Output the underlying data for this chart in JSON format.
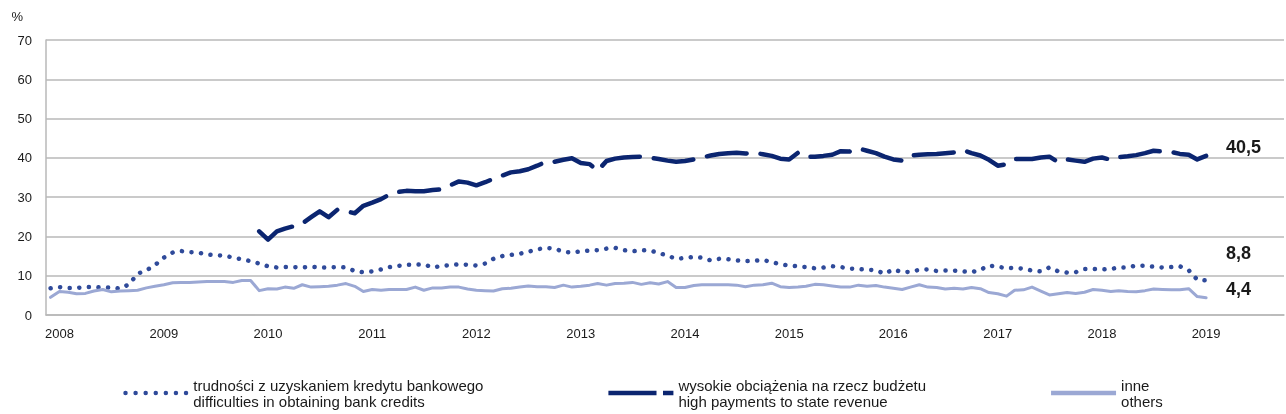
{
  "chart_data": {
    "type": "line",
    "ylabel": "%",
    "x": [
      "2007-12",
      "2008-01",
      "2008-02",
      "2008-03",
      "2008-04",
      "2008-05",
      "2008-06",
      "2008-07",
      "2008-08",
      "2008-09",
      "2008-10",
      "2008-11",
      "2008-12",
      "2009-01",
      "2009-02",
      "2009-03",
      "2009-04",
      "2009-05",
      "2009-06",
      "2009-07",
      "2009-08",
      "2009-09",
      "2009-10",
      "2009-11",
      "2009-12",
      "2010-01",
      "2010-02",
      "2010-03",
      "2010-04",
      "2010-05",
      "2010-06",
      "2010-07",
      "2010-08",
      "2010-09",
      "2010-10",
      "2010-11",
      "2010-12",
      "2011-01",
      "2011-02",
      "2011-03",
      "2011-04",
      "2011-05",
      "2011-06",
      "2011-07",
      "2011-08",
      "2011-09",
      "2011-10",
      "2011-11",
      "2011-12",
      "2012-01",
      "2012-02",
      "2012-03",
      "2012-04",
      "2012-05",
      "2012-06",
      "2012-07",
      "2012-08",
      "2012-09",
      "2012-10",
      "2012-11",
      "2012-12",
      "2013-01",
      "2013-02",
      "2013-03",
      "2013-04",
      "2013-05",
      "2013-06",
      "2013-07",
      "2013-08",
      "2013-09",
      "2013-10",
      "2013-11",
      "2013-12",
      "2014-01",
      "2014-02",
      "2014-03",
      "2014-04",
      "2014-05",
      "2014-06",
      "2014-07",
      "2014-08",
      "2014-09",
      "2014-10",
      "2014-11",
      "2014-12",
      "2015-01",
      "2015-02",
      "2015-03",
      "2015-04",
      "2015-05",
      "2015-06",
      "2015-07",
      "2015-08",
      "2015-09",
      "2015-10",
      "2015-11",
      "2015-12",
      "2016-01",
      "2016-02",
      "2016-03",
      "2016-04",
      "2016-05",
      "2016-06",
      "2016-07",
      "2016-08",
      "2016-09",
      "2016-10",
      "2016-11",
      "2016-12",
      "2017-01",
      "2017-02",
      "2017-03",
      "2017-04",
      "2017-05",
      "2017-06",
      "2017-07",
      "2017-08",
      "2017-09",
      "2017-10",
      "2017-11",
      "2017-12",
      "2018-01",
      "2018-02",
      "2018-03",
      "2018-04",
      "2018-05",
      "2018-06",
      "2018-07",
      "2018-08",
      "2018-09",
      "2018-10",
      "2018-11",
      "2018-12",
      "2019-01"
    ],
    "xlim": [
      "2007-11-15",
      "2019-10-01"
    ],
    "xticks": [
      "2008",
      "2009",
      "2010",
      "2011",
      "2012",
      "2013",
      "2014",
      "2015",
      "2016",
      "2017",
      "2018",
      "2019"
    ],
    "ylim": [
      0,
      70
    ],
    "yticks": [
      0,
      10,
      20,
      30,
      40,
      50,
      60,
      70
    ],
    "grid": "y",
    "legend": "bottom",
    "marker": "none",
    "series": [
      {
        "name": "trudności z uzyskaniem kredytu bankowego\ndifficulties in obtaining bank credits",
        "color": "#2f4a9a",
        "line_style": "dotted",
        "values": [
          6.8,
          7.1,
          6.9,
          6.9,
          7.1,
          7.1,
          7.0,
          7.0,
          6.7,
          7.8,
          10.5,
          11.4,
          12.7,
          14.6,
          15.9,
          16.3,
          16.0,
          15.9,
          15.4,
          15.2,
          15.1,
          14.6,
          14.2,
          13.7,
          13.1,
          12.4,
          12.1,
          12.2,
          12.2,
          12.1,
          12.3,
          12.1,
          12.1,
          12.2,
          12.1,
          11.2,
          10.9,
          11.1,
          11.6,
          12.2,
          12.5,
          12.8,
          12.8,
          12.9,
          12.1,
          12.5,
          12.7,
          12.9,
          12.8,
          12.6,
          13.1,
          14.3,
          15.0,
          15.3,
          15.6,
          16.1,
          16.7,
          17.1,
          16.9,
          16.1,
          15.9,
          16.2,
          16.4,
          16.5,
          16.9,
          17.1,
          16.5,
          16.2,
          16.5,
          16.4,
          15.8,
          15.1,
          14.3,
          14.5,
          14.8,
          14.6,
          13.9,
          14.3,
          14.2,
          13.9,
          13.7,
          13.8,
          14.0,
          13.5,
          12.9,
          12.6,
          12.4,
          12.2,
          11.9,
          12.1,
          12.4,
          12.2,
          11.8,
          11.7,
          11.5,
          11.4,
          10.5,
          11.6,
          10.9,
          11.0,
          11.5,
          11.6,
          11.2,
          11.3,
          11.3,
          11.1,
          10.9,
          11.5,
          12.6,
          12.3,
          11.9,
          12.0,
          11.8,
          11.3,
          11.1,
          12.1,
          11.1,
          10.8,
          10.9,
          11.7,
          11.7,
          11.6,
          11.7,
          12.1,
          12.1,
          12.6,
          12.5,
          12.3,
          12.1,
          12.2,
          12.4,
          11.4,
          9.0,
          8.8
        ],
        "value_labels": [
          null,
          null,
          null,
          null,
          null,
          null,
          null,
          null,
          null,
          null,
          null,
          null,
          null,
          null,
          null,
          null,
          null,
          null,
          null,
          null,
          null,
          null,
          null,
          null,
          null,
          null,
          null,
          null,
          null,
          null,
          null,
          null,
          null,
          null,
          null,
          null,
          null,
          null,
          null,
          null,
          null,
          null,
          null,
          null,
          null,
          null,
          null,
          null,
          null,
          null,
          null,
          null,
          null,
          null,
          null,
          null,
          null,
          null,
          null,
          null,
          null,
          null,
          null,
          null,
          null,
          null,
          null,
          null,
          null,
          null,
          null,
          null,
          null,
          null,
          null,
          null,
          null,
          null,
          null,
          null,
          null,
          null,
          null,
          null,
          null,
          null,
          null,
          null,
          null,
          null,
          null,
          null,
          null,
          null,
          null,
          null,
          null,
          null,
          null,
          null,
          null,
          null,
          null,
          null,
          null,
          null,
          null,
          null,
          null,
          null,
          null,
          null,
          null,
          null,
          null,
          null,
          null,
          null,
          null,
          null,
          null,
          null,
          null,
          null,
          null,
          null,
          null,
          null,
          null,
          null,
          null,
          null,
          null,
          "8,8"
        ]
      },
      {
        "name": "wysokie obciążenia na rzecz budżetu\nhigh payments to state revenue",
        "color": "#0b2570",
        "line_style": "dashed",
        "values": [
          null,
          null,
          null,
          null,
          null,
          null,
          null,
          null,
          null,
          null,
          null,
          null,
          null,
          null,
          null,
          null,
          null,
          null,
          null,
          null,
          null,
          null,
          null,
          null,
          21.3,
          19.2,
          21.3,
          22.0,
          22.6,
          23.3,
          24.9,
          26.4,
          24.9,
          26.8,
          26.4,
          25.9,
          27.8,
          28.6,
          29.5,
          30.6,
          31.3,
          31.6,
          31.5,
          31.5,
          31.8,
          32.0,
          33.0,
          34.0,
          33.7,
          33.0,
          33.8,
          34.7,
          35.5,
          36.3,
          36.6,
          37.1,
          38.0,
          39.0,
          39.0,
          39.5,
          39.9,
          38.7,
          38.4,
          36.7,
          39.2,
          39.8,
          40.1,
          40.2,
          40.3,
          40.0,
          39.7,
          39.3,
          39.0,
          39.2,
          39.6,
          40.1,
          40.6,
          41.0,
          41.2,
          41.3,
          41.1,
          41.3,
          40.9,
          40.5,
          39.8,
          39.6,
          41.3,
          40.2,
          40.3,
          40.5,
          40.8,
          41.7,
          41.6,
          42.4,
          41.8,
          41.2,
          40.3,
          39.6,
          39.3,
          40.6,
          40.8,
          40.9,
          41.0,
          41.2,
          41.4,
          42.0,
          41.2,
          40.6,
          39.5,
          38.0,
          38.4,
          39.7,
          39.7,
          39.7,
          40.1,
          40.3,
          38.9,
          39.6,
          39.3,
          39.0,
          39.8,
          40.1,
          39.5,
          40.2,
          40.4,
          40.7,
          41.2,
          41.8,
          41.6,
          41.5,
          41.0,
          40.8,
          39.6,
          40.5
        ],
        "value_labels": [
          null,
          null,
          null,
          null,
          null,
          null,
          null,
          null,
          null,
          null,
          null,
          null,
          null,
          null,
          null,
          null,
          null,
          null,
          null,
          null,
          null,
          null,
          null,
          null,
          null,
          null,
          null,
          null,
          null,
          null,
          null,
          null,
          null,
          null,
          null,
          null,
          null,
          null,
          null,
          null,
          null,
          null,
          null,
          null,
          null,
          null,
          null,
          null,
          null,
          null,
          null,
          null,
          null,
          null,
          null,
          null,
          null,
          null,
          null,
          null,
          null,
          null,
          null,
          null,
          null,
          null,
          null,
          null,
          null,
          null,
          null,
          null,
          null,
          null,
          null,
          null,
          null,
          null,
          null,
          null,
          null,
          null,
          null,
          null,
          null,
          null,
          null,
          null,
          null,
          null,
          null,
          null,
          null,
          null,
          null,
          null,
          null,
          null,
          null,
          null,
          null,
          null,
          null,
          null,
          null,
          null,
          null,
          null,
          null,
          null,
          null,
          null,
          null,
          null,
          null,
          null,
          null,
          null,
          null,
          null,
          null,
          null,
          null,
          null,
          null,
          null,
          null,
          null,
          null,
          null,
          null,
          null,
          null,
          "40,5"
        ]
      },
      {
        "name": "inne\nothers",
        "color": "#9ba8d4",
        "line_style": "solid",
        "values": [
          4.5,
          6.0,
          5.8,
          5.4,
          5.5,
          6.1,
          6.5,
          5.9,
          6.1,
          6.2,
          6.3,
          6.9,
          7.3,
          7.7,
          8.2,
          8.3,
          8.3,
          8.4,
          8.5,
          8.5,
          8.5,
          8.3,
          8.8,
          8.8,
          6.2,
          6.7,
          6.6,
          7.1,
          6.8,
          7.7,
          7.1,
          7.2,
          7.3,
          7.6,
          8.0,
          7.3,
          6.0,
          6.5,
          6.3,
          6.5,
          6.5,
          6.5,
          7.1,
          6.3,
          6.9,
          6.9,
          7.1,
          7.1,
          6.6,
          6.3,
          6.2,
          6.1,
          6.7,
          6.8,
          7.1,
          7.4,
          7.2,
          7.2,
          7.0,
          7.6,
          7.1,
          7.3,
          7.6,
          8.0,
          7.6,
          8.0,
          8.1,
          8.3,
          7.8,
          8.2,
          7.9,
          8.5,
          7.0,
          7.0,
          7.5,
          7.7,
          7.7,
          7.7,
          7.7,
          7.6,
          7.2,
          7.6,
          7.7,
          8.1,
          7.2,
          7.0,
          7.1,
          7.3,
          7.8,
          7.7,
          7.4,
          7.1,
          7.1,
          7.6,
          7.3,
          7.5,
          7.1,
          6.8,
          6.5,
          7.1,
          7.7,
          7.1,
          7.0,
          6.6,
          6.8,
          6.6,
          7.0,
          6.7,
          5.7,
          5.4,
          4.8,
          6.3,
          6.4,
          7.1,
          6.1,
          5.1,
          5.4,
          5.7,
          5.5,
          5.8,
          6.5,
          6.3,
          6.0,
          6.2,
          6.0,
          5.9,
          6.2,
          6.6,
          6.5,
          6.4,
          6.4,
          6.7,
          4.7,
          4.4
        ],
        "value_labels": [
          null,
          null,
          null,
          null,
          null,
          null,
          null,
          null,
          null,
          null,
          null,
          null,
          null,
          null,
          null,
          null,
          null,
          null,
          null,
          null,
          null,
          null,
          null,
          null,
          null,
          null,
          null,
          null,
          null,
          null,
          null,
          null,
          null,
          null,
          null,
          null,
          null,
          null,
          null,
          null,
          null,
          null,
          null,
          null,
          null,
          null,
          null,
          null,
          null,
          null,
          null,
          null,
          null,
          null,
          null,
          null,
          null,
          null,
          null,
          null,
          null,
          null,
          null,
          null,
          null,
          null,
          null,
          null,
          null,
          null,
          null,
          null,
          null,
          null,
          null,
          null,
          null,
          null,
          null,
          null,
          null,
          null,
          null,
          null,
          null,
          null,
          null,
          null,
          null,
          null,
          null,
          null,
          null,
          null,
          null,
          null,
          null,
          null,
          null,
          null,
          null,
          null,
          null,
          null,
          null,
          null,
          null,
          null,
          null,
          null,
          null,
          null,
          null,
          null,
          null,
          null,
          null,
          null,
          null,
          null,
          null,
          null,
          null,
          null,
          null,
          null,
          null,
          null,
          null,
          null,
          null,
          null,
          null,
          "4,4"
        ]
      }
    ]
  }
}
